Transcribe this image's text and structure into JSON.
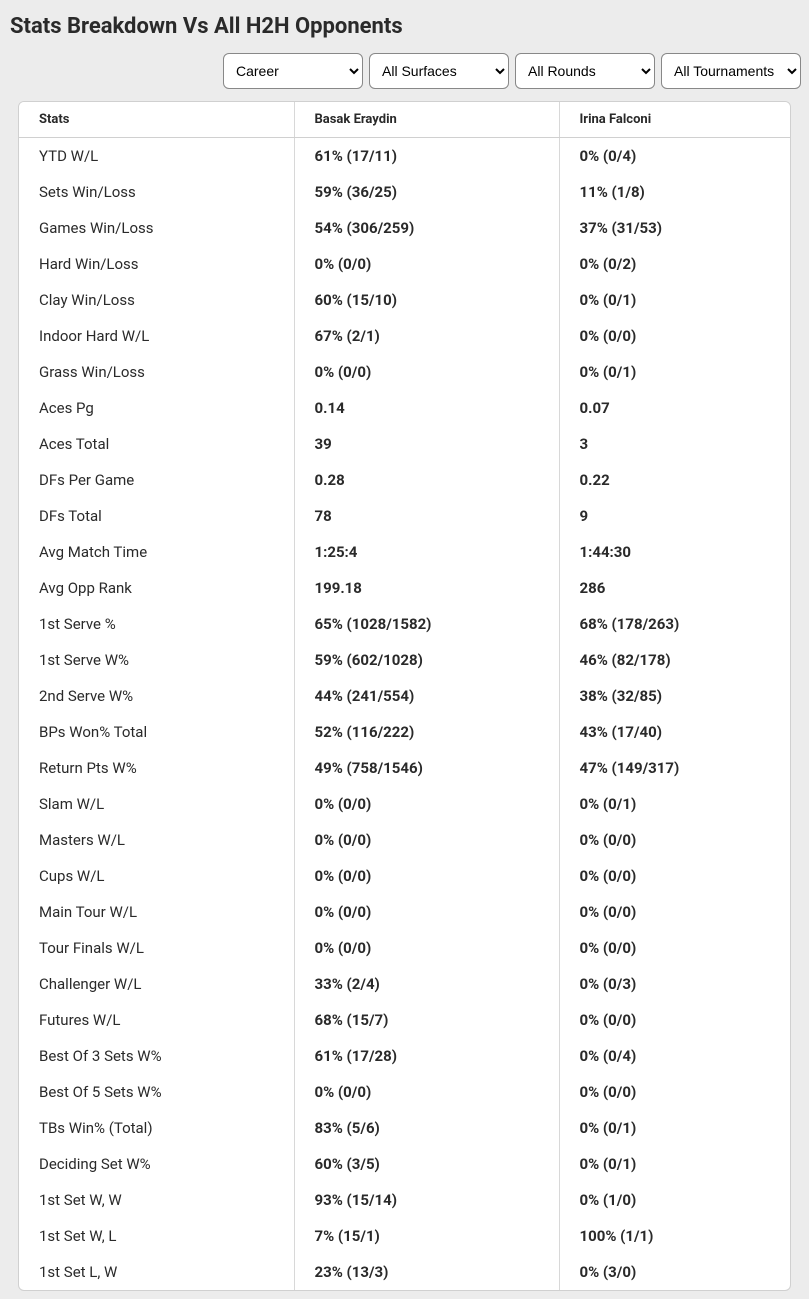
{
  "title": "Stats Breakdown Vs All H2H Opponents",
  "filters": {
    "career": {
      "selected": "Career",
      "options": [
        "Career"
      ]
    },
    "surfaces": {
      "selected": "All Surfaces",
      "options": [
        "All Surfaces"
      ]
    },
    "rounds": {
      "selected": "All Rounds",
      "options": [
        "All Rounds"
      ]
    },
    "tournaments": {
      "selected": "All Tournaments",
      "options": [
        "All Tournaments"
      ]
    }
  },
  "columns": {
    "stats": "Stats",
    "p1": "Basak Eraydin",
    "p2": "Irina Falconi"
  },
  "rows": [
    {
      "stat": "YTD W/L",
      "p1": "61% (17/11)",
      "p2": "0% (0/4)"
    },
    {
      "stat": "Sets Win/Loss",
      "p1": "59% (36/25)",
      "p2": "11% (1/8)"
    },
    {
      "stat": "Games Win/Loss",
      "p1": "54% (306/259)",
      "p2": "37% (31/53)"
    },
    {
      "stat": "Hard Win/Loss",
      "p1": "0% (0/0)",
      "p2": "0% (0/2)"
    },
    {
      "stat": "Clay Win/Loss",
      "p1": "60% (15/10)",
      "p2": "0% (0/1)"
    },
    {
      "stat": "Indoor Hard W/L",
      "p1": "67% (2/1)",
      "p2": "0% (0/0)"
    },
    {
      "stat": "Grass Win/Loss",
      "p1": "0% (0/0)",
      "p2": "0% (0/1)"
    },
    {
      "stat": "Aces Pg",
      "p1": "0.14",
      "p2": "0.07"
    },
    {
      "stat": "Aces Total",
      "p1": "39",
      "p2": "3"
    },
    {
      "stat": "DFs Per Game",
      "p1": "0.28",
      "p2": "0.22"
    },
    {
      "stat": "DFs Total",
      "p1": "78",
      "p2": "9"
    },
    {
      "stat": "Avg Match Time",
      "p1": "1:25:4",
      "p2": "1:44:30"
    },
    {
      "stat": "Avg Opp Rank",
      "p1": "199.18",
      "p2": "286"
    },
    {
      "stat": "1st Serve %",
      "p1": "65% (1028/1582)",
      "p2": "68% (178/263)"
    },
    {
      "stat": "1st Serve W%",
      "p1": "59% (602/1028)",
      "p2": "46% (82/178)"
    },
    {
      "stat": "2nd Serve W%",
      "p1": "44% (241/554)",
      "p2": "38% (32/85)"
    },
    {
      "stat": "BPs Won% Total",
      "p1": "52% (116/222)",
      "p2": "43% (17/40)"
    },
    {
      "stat": "Return Pts W%",
      "p1": "49% (758/1546)",
      "p2": "47% (149/317)"
    },
    {
      "stat": "Slam W/L",
      "p1": "0% (0/0)",
      "p2": "0% (0/1)"
    },
    {
      "stat": "Masters W/L",
      "p1": "0% (0/0)",
      "p2": "0% (0/0)"
    },
    {
      "stat": "Cups W/L",
      "p1": "0% (0/0)",
      "p2": "0% (0/0)"
    },
    {
      "stat": "Main Tour W/L",
      "p1": "0% (0/0)",
      "p2": "0% (0/0)"
    },
    {
      "stat": "Tour Finals W/L",
      "p1": "0% (0/0)",
      "p2": "0% (0/0)"
    },
    {
      "stat": "Challenger W/L",
      "p1": "33% (2/4)",
      "p2": "0% (0/3)"
    },
    {
      "stat": "Futures W/L",
      "p1": "68% (15/7)",
      "p2": "0% (0/0)"
    },
    {
      "stat": "Best Of 3 Sets W%",
      "p1": "61% (17/28)",
      "p2": "0% (0/4)"
    },
    {
      "stat": "Best Of 5 Sets W%",
      "p1": "0% (0/0)",
      "p2": "0% (0/0)"
    },
    {
      "stat": "TBs Win% (Total)",
      "p1": "83% (5/6)",
      "p2": "0% (0/1)"
    },
    {
      "stat": "Deciding Set W%",
      "p1": "60% (3/5)",
      "p2": "0% (0/1)"
    },
    {
      "stat": "1st Set W, W",
      "p1": "93% (15/14)",
      "p2": "0% (1/0)"
    },
    {
      "stat": "1st Set W, L",
      "p1": "7% (15/1)",
      "p2": "100% (1/1)"
    },
    {
      "stat": "1st Set L, W",
      "p1": "23% (13/3)",
      "p2": "0% (3/0)"
    }
  ],
  "style": {
    "background": "#ececec",
    "table_background": "#ffffff",
    "border_color": "#d0d0d0",
    "cell_border_color": "#d8d8d8",
    "text_color": "#2a2a2a",
    "title_fontsize": 22,
    "header_fontsize": 13,
    "cell_fontsize": 15
  }
}
